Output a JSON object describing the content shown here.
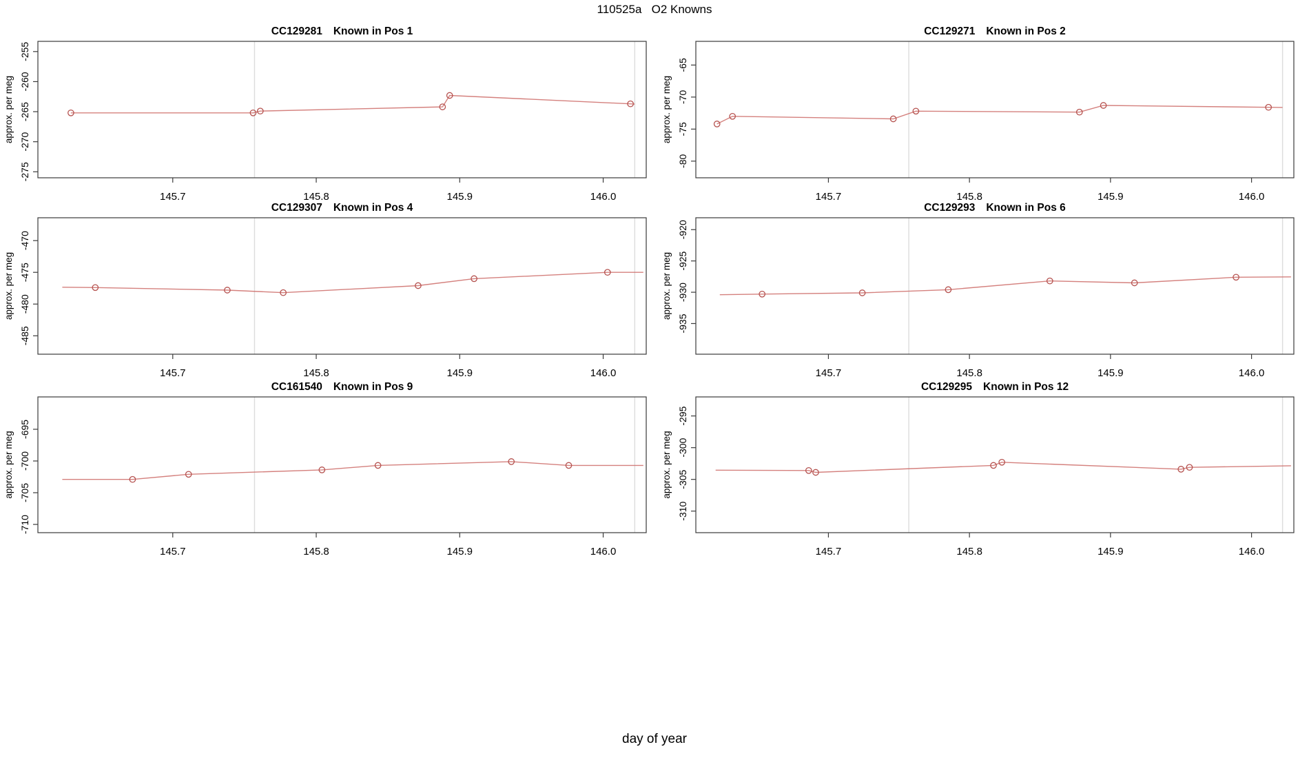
{
  "main_title": "110525a   O2 Knowns",
  "x_axis_title": "day of year",
  "y_axis_title": "approx. per meg",
  "colors": {
    "line": "#cd6a66",
    "marker": "#b5524f",
    "grid": "#dcdcdc",
    "frame": "#3a3a3a",
    "text": "#000000",
    "background": "#ffffff"
  },
  "axis": {
    "xlim": [
      145.606,
      146.03
    ],
    "xtick_values": [
      145.7,
      145.8,
      145.9,
      146.0
    ],
    "xtick_labels": [
      "145.7",
      "145.8",
      "145.9",
      "146.0"
    ],
    "gridlines_x": [
      145.757,
      146.022
    ]
  },
  "chart_data": {
    "type": "line",
    "layout": "2 columns x 3 rows, shared x axis ticks on every panel",
    "xlabel": "day of year",
    "ylabel": "approx. per meg",
    "plots": [
      {
        "code": "CC129281",
        "known": "Known in Pos 1",
        "ylim": [
          -276.0,
          -253.3
        ],
        "ytick_values": [
          -255,
          -260,
          -265,
          -270,
          -275
        ],
        "ytick_labels": [
          "-255",
          "-260",
          "-265",
          "-270",
          "-275"
        ],
        "points": [
          [
            145.629,
            -265.2
          ],
          [
            145.756,
            -265.2
          ],
          [
            145.761,
            -264.9
          ],
          [
            145.888,
            -264.2
          ],
          [
            145.893,
            -262.3
          ],
          [
            146.019,
            -263.7
          ]
        ],
        "line_pre": null,
        "line_post": [
          146.022,
          -263.74
        ]
      },
      {
        "code": "CC129271",
        "known": "Known in Pos 2",
        "ylim": [
          -82.6,
          -61.3
        ],
        "ytick_values": [
          -65,
          -70,
          -75,
          -80
        ],
        "ytick_labels": [
          "-65",
          "-70",
          "-75",
          "-80"
        ],
        "points": [
          [
            145.621,
            -74.2
          ],
          [
            145.632,
            -73.0
          ],
          [
            145.746,
            -73.4
          ],
          [
            145.762,
            -72.2
          ],
          [
            145.878,
            -72.35
          ],
          [
            145.895,
            -71.3
          ],
          [
            146.012,
            -71.6
          ]
        ],
        "line_pre": null,
        "line_post": [
          146.022,
          -71.62
        ]
      },
      {
        "code": "CC129307",
        "known": "Known in Pos 4",
        "ylim": [
          -487.9,
          -466.4
        ],
        "ytick_values": [
          -470,
          -475,
          -480,
          -485
        ],
        "ytick_labels": [
          "-470",
          "-475",
          "-480",
          "-485"
        ],
        "points": [
          [
            145.646,
            -477.4
          ],
          [
            145.738,
            -477.8
          ],
          [
            145.777,
            -478.2
          ],
          [
            145.871,
            -477.1
          ],
          [
            145.91,
            -476.0
          ],
          [
            146.003,
            -475.0
          ]
        ],
        "line_pre": [
          145.623,
          -477.35
        ],
        "line_post": [
          146.028,
          -475.0
        ]
      },
      {
        "code": "CC129293",
        "known": "Known in Pos 6",
        "ylim": [
          -939.9,
          -918.1
        ],
        "ytick_values": [
          -920,
          -925,
          -930,
          -935
        ],
        "ytick_labels": [
          "-920",
          "-925",
          "-930",
          "-935"
        ],
        "points": [
          [
            145.653,
            -930.3
          ],
          [
            145.724,
            -930.1
          ],
          [
            145.785,
            -929.6
          ],
          [
            145.857,
            -928.2
          ],
          [
            145.917,
            -928.5
          ],
          [
            145.989,
            -927.6
          ]
        ],
        "line_pre": [
          145.623,
          -930.4
        ],
        "line_post": [
          146.028,
          -927.55
        ]
      },
      {
        "code": "CC161540",
        "known": "Known in Pos 9",
        "ylim": [
          -711.3,
          -689.9
        ],
        "ytick_values": [
          -695,
          -700,
          -705,
          -710
        ],
        "ytick_labels": [
          "-695",
          "-700",
          "-705",
          "-710"
        ],
        "points": [
          [
            145.672,
            -702.9
          ],
          [
            145.711,
            -702.1
          ],
          [
            145.804,
            -701.4
          ],
          [
            145.843,
            -700.7
          ],
          [
            145.936,
            -700.1
          ],
          [
            145.976,
            -700.7
          ]
        ],
        "line_pre": [
          145.623,
          -702.9
        ],
        "line_post": [
          146.028,
          -700.7
        ]
      },
      {
        "code": "CC129295",
        "known": "Known in Pos 12",
        "ylim": [
          -313.4,
          -292.0
        ],
        "ytick_values": [
          -295,
          -300,
          -305,
          -310
        ],
        "ytick_labels": [
          "-295",
          "-300",
          "-305",
          "-310"
        ],
        "points": [
          [
            145.686,
            -303.6
          ],
          [
            145.691,
            -303.9
          ],
          [
            145.817,
            -302.8
          ],
          [
            145.823,
            -302.3
          ],
          [
            145.95,
            -303.4
          ],
          [
            145.956,
            -303.1
          ]
        ],
        "line_pre": [
          145.62,
          -303.55
        ],
        "line_post": [
          146.028,
          -302.85
        ]
      }
    ]
  }
}
